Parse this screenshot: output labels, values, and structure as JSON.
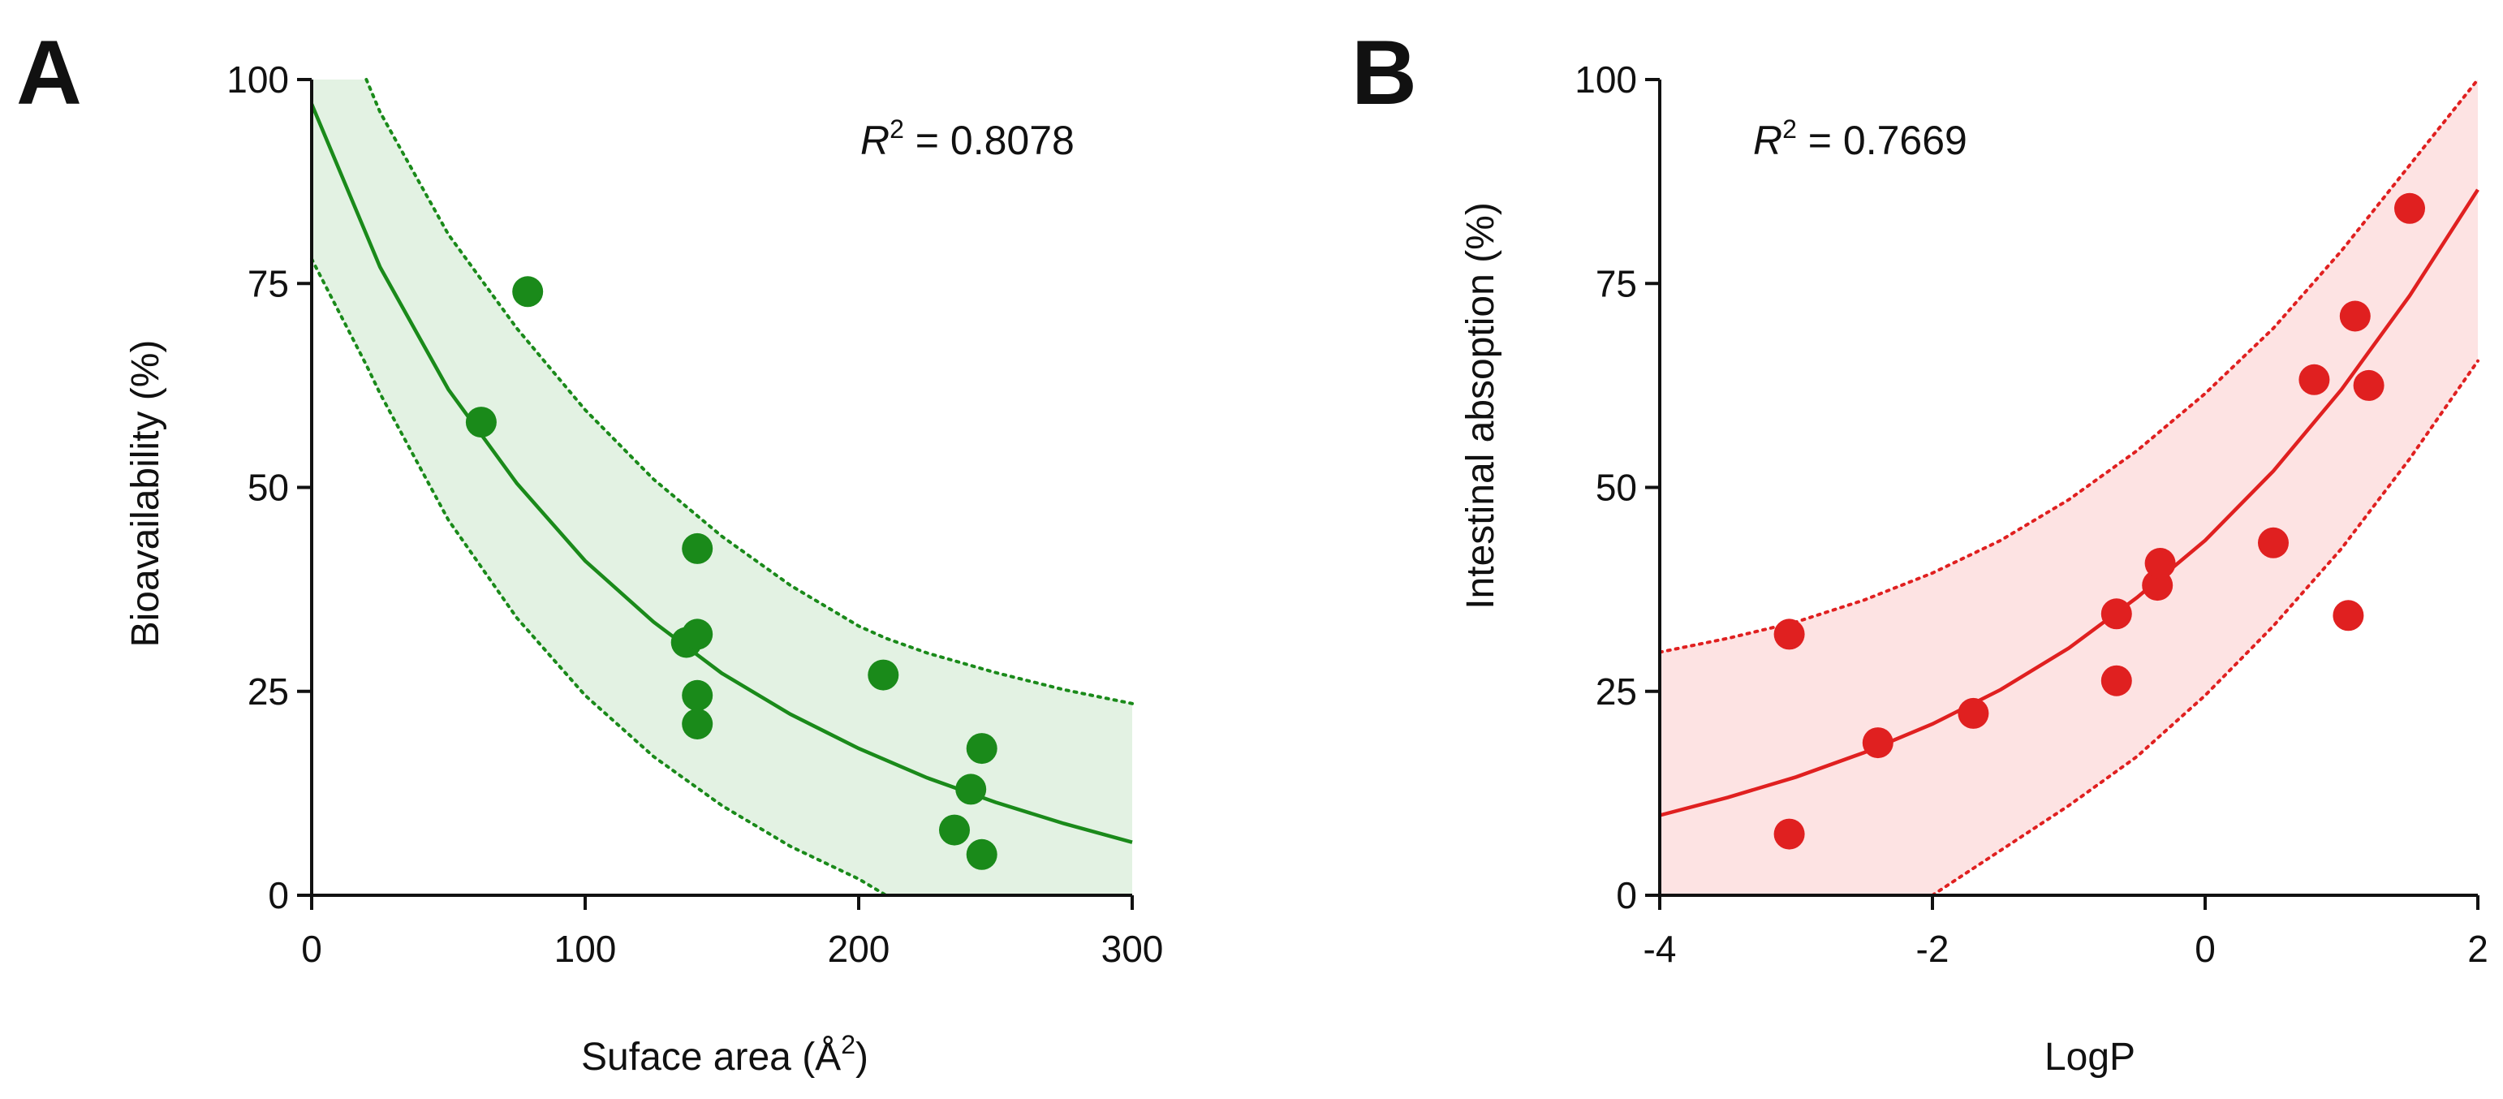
{
  "figure": {
    "panels": [
      {
        "letter": "A",
        "chart_index": 0,
        "r2_label": {
          "prefix": "R",
          "superscript": "2",
          "value": " = 0.8078"
        },
        "xlabel": {
          "text": "Suface area (Å",
          "superscript": "2",
          "suffix": ")"
        },
        "ylabel": "Bioavailability (%)"
      },
      {
        "letter": "B",
        "chart_index": 1,
        "r2_label": {
          "prefix": "R",
          "superscript": "2",
          "value": " = 0.7669"
        },
        "xlabel": {
          "text": "LogP",
          "superscript": "",
          "suffix": ""
        },
        "ylabel": "Intestinal absoption (%)"
      }
    ]
  },
  "chart_data": [
    {
      "type": "scatter",
      "panel": "A",
      "title": "",
      "xlabel": "Suface area (Å2)",
      "ylabel": "Bioavailability (%)",
      "xlim": [
        0,
        300
      ],
      "ylim": [
        0,
        100
      ],
      "xticks": [
        0,
        100,
        200,
        300
      ],
      "xtick_labels": [
        "0",
        "100",
        "200",
        "300"
      ],
      "yticks": [
        0,
        25,
        50,
        75,
        100
      ],
      "ytick_labels": [
        "0",
        "25",
        "50",
        "75",
        "100"
      ],
      "grid": false,
      "annotation": "R2 = 0.8078",
      "color": "#1a8a1a",
      "band_color": "#e3f2e3",
      "points": [
        {
          "x": 79,
          "y": 74
        },
        {
          "x": 62,
          "y": 58
        },
        {
          "x": 141,
          "y": 42.5
        },
        {
          "x": 137,
          "y": 31
        },
        {
          "x": 141,
          "y": 32
        },
        {
          "x": 141,
          "y": 24.5
        },
        {
          "x": 141,
          "y": 21
        },
        {
          "x": 209,
          "y": 27
        },
        {
          "x": 245,
          "y": 18
        },
        {
          "x": 241,
          "y": 13
        },
        {
          "x": 235,
          "y": 8
        },
        {
          "x": 245,
          "y": 5
        }
      ],
      "fit": {
        "model": "exponential decay",
        "x": [
          0,
          25,
          50,
          75,
          100,
          125,
          150,
          175,
          200,
          225,
          250,
          275,
          300
        ],
        "y": [
          97,
          77,
          62,
          50.5,
          41,
          33.5,
          27.2,
          22.2,
          18,
          14.4,
          11.4,
          8.8,
          6.5
        ]
      },
      "prediction_band": {
        "x": [
          0,
          20,
          25,
          50,
          75,
          100,
          125,
          150,
          175,
          200,
          210,
          225,
          250,
          275,
          300
        ],
        "upper": [
          100,
          100,
          96,
          81,
          69.5,
          59.5,
          51,
          44,
          38,
          33,
          31.5,
          29.7,
          27.3,
          25.2,
          23.5
        ],
        "lower": [
          78,
          65,
          61.5,
          46,
          34,
          24.5,
          17,
          11,
          6,
          2,
          0,
          0,
          0,
          0,
          0
        ]
      }
    },
    {
      "type": "scatter",
      "panel": "B",
      "title": "",
      "xlabel": "LogP",
      "ylabel": "Intestinal absoption (%)",
      "xlim": [
        -4,
        2
      ],
      "ylim": [
        0,
        100
      ],
      "xticks": [
        -4,
        -2,
        0,
        2
      ],
      "xtick_labels": [
        "-4",
        "-2",
        "0",
        "2"
      ],
      "yticks": [
        0,
        25,
        50,
        75,
        100
      ],
      "ytick_labels": [
        "0",
        "25",
        "50",
        "75",
        "100"
      ],
      "grid": false,
      "annotation": "R2 = 0.7669",
      "color": "#e02020",
      "band_color": "#fde3e3",
      "points": [
        {
          "x": -3.05,
          "y": 32
        },
        {
          "x": -3.05,
          "y": 7.5
        },
        {
          "x": -2.4,
          "y": 18.7
        },
        {
          "x": -1.7,
          "y": 22.3
        },
        {
          "x": -0.65,
          "y": 34.5
        },
        {
          "x": -0.65,
          "y": 26.3
        },
        {
          "x": -0.35,
          "y": 38
        },
        {
          "x": -0.33,
          "y": 40.7
        },
        {
          "x": 0.5,
          "y": 43.2
        },
        {
          "x": 0.8,
          "y": 63.2
        },
        {
          "x": 1.05,
          "y": 34.3
        },
        {
          "x": 1.1,
          "y": 71
        },
        {
          "x": 1.2,
          "y": 62.5
        },
        {
          "x": 1.5,
          "y": 84.2
        }
      ],
      "fit": {
        "model": "exponential growth",
        "x": [
          -4,
          -3.5,
          -3,
          -2.5,
          -2,
          -1.5,
          -1,
          -0.5,
          0,
          0.5,
          1,
          1.5,
          2
        ],
        "y": [
          9.8,
          12,
          14.5,
          17.5,
          21,
          25.2,
          30.3,
          36.5,
          43.5,
          52,
          62,
          73.5,
          86.5
        ]
      },
      "prediction_band": {
        "x": [
          -4,
          -3.5,
          -3,
          -2.5,
          -2,
          -1.5,
          -1,
          -0.5,
          0,
          0.5,
          1,
          1.5,
          2
        ],
        "upper": [
          29.8,
          31.5,
          33.5,
          36.2,
          39.5,
          43.5,
          48.5,
          54.5,
          61.5,
          69.5,
          79,
          89.5,
          100
        ],
        "lower": [
          0,
          0,
          0,
          0,
          0,
          5.5,
          11,
          17,
          24.5,
          33,
          42.5,
          53.5,
          65.5
        ]
      }
    }
  ]
}
